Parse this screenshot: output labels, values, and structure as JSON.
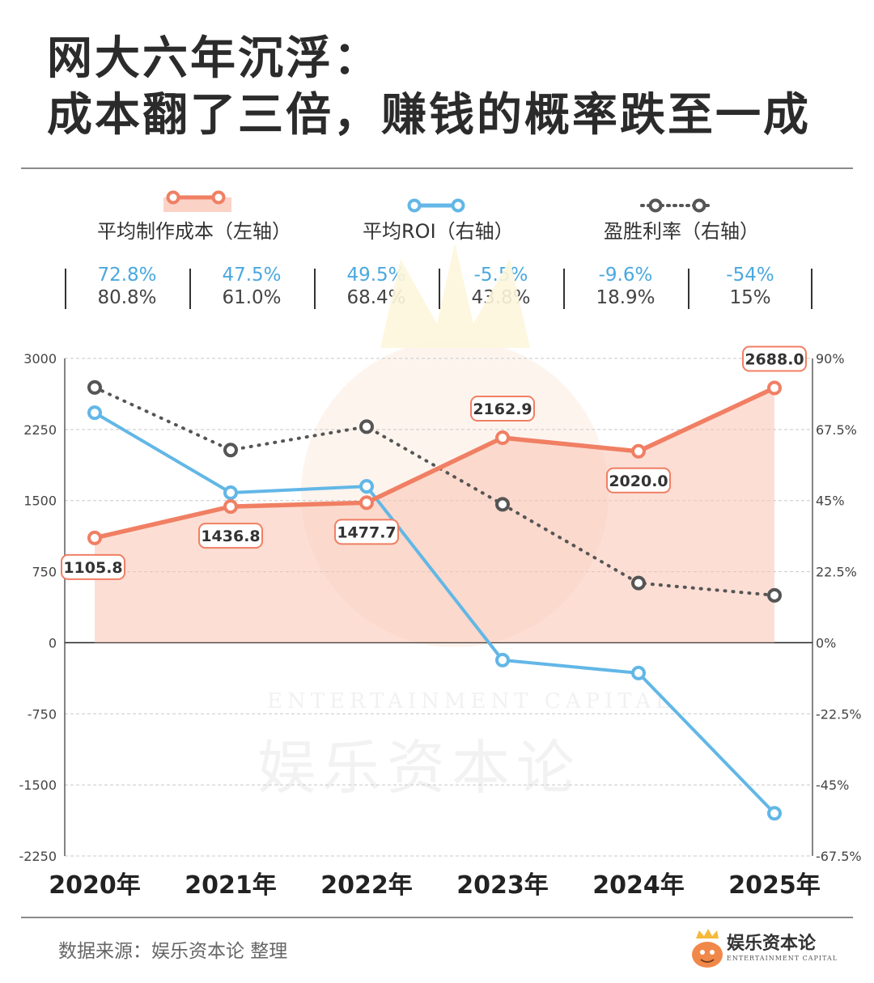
{
  "title": {
    "line1": "网大六年沉浮：",
    "line2": "成本翻了三倍，赚钱的概率跌至一成"
  },
  "legend": {
    "cost": "平均制作成本（左轴）",
    "roi": "平均ROI（右轴）",
    "win": "盈胜利率（右轴）"
  },
  "stats": [
    {
      "roi": "72.8%",
      "win": "80.8%"
    },
    {
      "roi": "47.5%",
      "win": "61.0%"
    },
    {
      "roi": "49.5%",
      "win": "68.4%"
    },
    {
      "roi": "-5.5%",
      "win": "43.8%"
    },
    {
      "roi": "-9.6%",
      "win": "18.9%"
    },
    {
      "roi": "-54%",
      "win": "15%"
    }
  ],
  "chart_data": {
    "type": "line",
    "categories": [
      "2020年",
      "2021年",
      "2022年",
      "2023年",
      "2024年",
      "2025年"
    ],
    "series": [
      {
        "name": "平均制作成本（左轴）",
        "axis": "left",
        "values": [
          1105.8,
          1436.8,
          1477.7,
          2162.9,
          2020.0,
          2688.0
        ],
        "labels": [
          "1105.8",
          "1436.8",
          "1477.7",
          "2162.9",
          "2020.0",
          "2688.0"
        ],
        "style": "area-line",
        "color": "#f07f63"
      },
      {
        "name": "平均ROI（右轴）",
        "axis": "right",
        "values": [
          72.8,
          47.5,
          49.5,
          -5.5,
          -9.6,
          -54
        ],
        "style": "line",
        "color": "#62b7e6"
      },
      {
        "name": "盈胜利率（右轴）",
        "axis": "right",
        "values": [
          80.8,
          61.0,
          68.4,
          43.8,
          18.9,
          15
        ],
        "style": "dotted",
        "color": "#555555"
      }
    ],
    "left_axis": {
      "min": -2250,
      "max": 3000,
      "ticks": [
        "3000",
        "2250",
        "1500",
        "750",
        "0",
        "-750",
        "-1500",
        "-2250"
      ]
    },
    "right_axis": {
      "min": -67.5,
      "max": 90,
      "ticks": [
        "90%",
        "67.5%",
        "45%",
        "22.5%",
        "0%",
        "-22.5%",
        "-45%",
        "-67.5%"
      ]
    },
    "grid": true,
    "legend_position": "top"
  },
  "watermark": {
    "en": "ENTERTAINMENT CAPITAL",
    "cn": "娱乐资本论"
  },
  "source": "数据来源：娱乐资本论 整理",
  "logo": {
    "name": "娱乐资本论",
    "sub": "ENTERTAINMENT CAPITAL"
  }
}
